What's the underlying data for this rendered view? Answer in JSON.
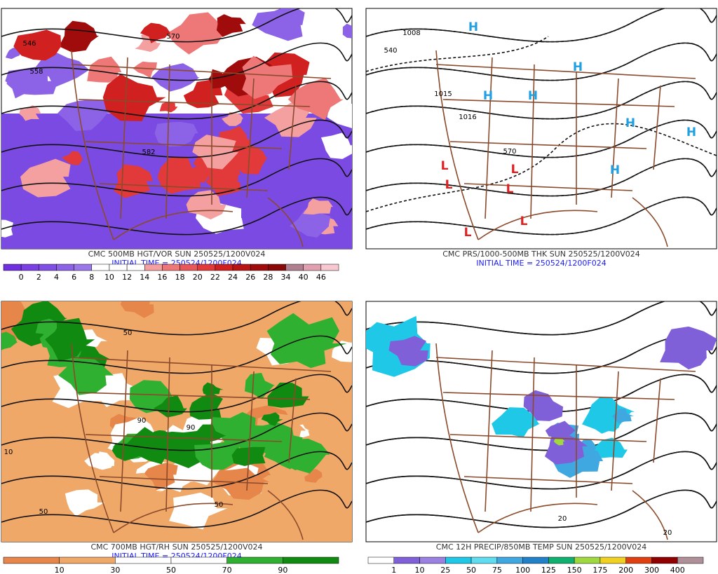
{
  "panels": [
    {
      "caption": "CMC 500MB HGT/VOR SUN 250525/1200V024",
      "initial_time": "INITIAL TIME = 250524/1200F024",
      "colorbar": {
        "labels": [
          0,
          2,
          4,
          6,
          8,
          10,
          12,
          14,
          16,
          18,
          20,
          22,
          24,
          26,
          28,
          34,
          40,
          46
        ],
        "colors": [
          "#7030e0",
          "#7a40e4",
          "#8050e4",
          "#8c62e6",
          "#9a78ea",
          "#ffffff",
          "#ffffff",
          "#ffffff",
          "#f4a0a0",
          "#ee7878",
          "#e85858",
          "#e03a3a",
          "#d02020",
          "#b81414",
          "#a00c0c",
          "#8a0808",
          "#b08090",
          "#e0a0b0",
          "#f8c8d0"
        ]
      },
      "map_labels": [
        "546",
        "558",
        "570",
        "582"
      ]
    },
    {
      "caption": "CMC PRS/1000-500MB THK SUN 250525/1200V024",
      "initial_time": "INITIAL TIME = 250524/1200F024",
      "map_labels": [
        "H",
        "H",
        "H",
        "H",
        "H",
        "H",
        "H",
        "L",
        "L",
        "L",
        "L",
        "L",
        "L",
        "1008",
        "1016",
        "1015",
        "540",
        "570"
      ]
    },
    {
      "caption": "CMC 700MB HGT/RH SUN 250525/1200V024",
      "initial_time": "INITIAL TIME = 250524/1200F024",
      "colorbar": {
        "labels": [
          10,
          30,
          50,
          70,
          90
        ],
        "colors": [
          "#e6864a",
          "#f0a868",
          "#ffffff",
          "#ffffff",
          "#30b030",
          "#108a10"
        ]
      },
      "map_labels": [
        "50",
        "90",
        "90",
        "50",
        "10",
        "50"
      ]
    },
    {
      "caption": "CMC 12H PRECIP/850MB TEMP SUN 250525/1200V024",
      "colorbar": {
        "labels": [
          1,
          10,
          25,
          50,
          75,
          100,
          125,
          150,
          175,
          200,
          300,
          400
        ],
        "colors": [
          "#ffffff",
          "#8060d8",
          "#9a80e0",
          "#20c8e8",
          "#60dcf0",
          "#40a8e0",
          "#2080c8",
          "#10b070",
          "#a0d840",
          "#f0d020",
          "#e04010",
          "#900000",
          "#b09098"
        ]
      },
      "map_labels": [
        "20",
        "20"
      ]
    }
  ]
}
